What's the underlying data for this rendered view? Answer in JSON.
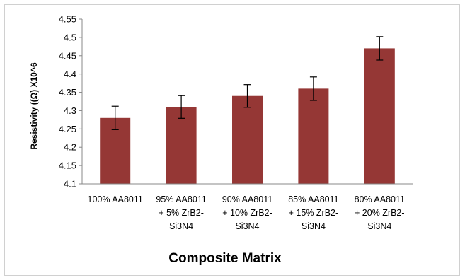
{
  "chart_data": {
    "type": "bar",
    "title": "",
    "xlabel": "Composite Matrix",
    "ylabel": "Resistivity ((Ω) X10^6",
    "ylim": [
      4.1,
      4.55
    ],
    "yticks": [
      "4.1",
      "4.15",
      "4.2",
      "4.25",
      "4.3",
      "4.35",
      "4.4",
      "4.45",
      "4.5",
      "4.55"
    ],
    "grid": false,
    "legend": "none",
    "bar_color": "#953735",
    "categories": [
      [
        "100% AA8011"
      ],
      [
        "95% AA8011",
        "+ 5% ZrB2-",
        "Si3N4"
      ],
      [
        "90% AA8011",
        "+ 10% ZrB2-",
        "Si3N4"
      ],
      [
        "85% AA8011",
        "+ 15% ZrB2-",
        "Si3N4"
      ],
      [
        "80% AA8011",
        "+ 20% ZrB2-",
        "Si3N4"
      ]
    ],
    "values": [
      4.28,
      4.31,
      4.34,
      4.36,
      4.47
    ],
    "errors": [
      0.032,
      0.031,
      0.031,
      0.032,
      0.032
    ]
  }
}
